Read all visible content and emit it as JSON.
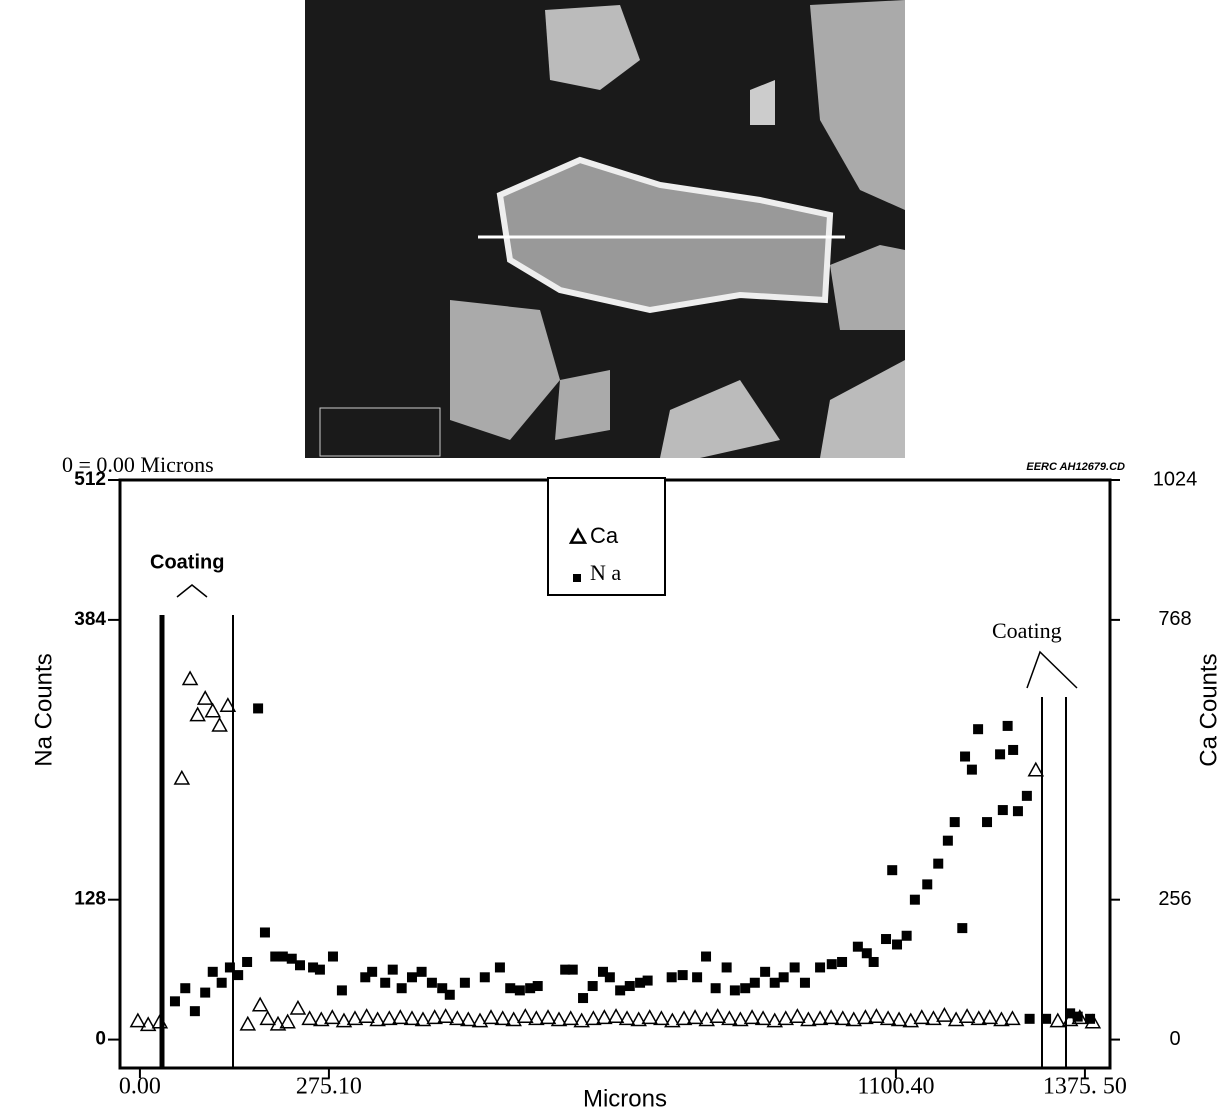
{
  "chart_data": {
    "type": "scatter",
    "title": "0 = 0.00 Microns",
    "subtitle": "EERC AH12679.CD",
    "x_label": "Microns",
    "y_label": "Na Counts",
    "y2_label": "Ca Counts",
    "annotations": [
      "Coating",
      "Coating"
    ],
    "xlim": [
      -29,
      1412
    ],
    "ylim": [
      -26,
      512
    ],
    "y2lim": [
      -52,
      1024
    ],
    "xticks": [
      {
        "value": 0,
        "label": "0.00"
      },
      {
        "value": 275.1,
        "label": "275.10"
      },
      {
        "value": 1100.4,
        "label": "1100.40"
      },
      {
        "value": 1375.5,
        "label": "1375. 50"
      }
    ],
    "yticks": [
      0,
      128,
      384,
      512
    ],
    "y2ticks": [
      0,
      256,
      768,
      1024
    ],
    "series": [
      {
        "name": "Ca",
        "color": "#000000",
        "marker": "triangle",
        "axis": "y2",
        "x": [
          -3,
          12,
          29,
          61,
          73,
          84,
          95,
          106,
          116,
          128,
          157,
          175,
          186,
          201,
          215,
          230,
          247,
          264,
          280,
          297,
          313,
          330,
          346,
          363,
          379,
          396,
          412,
          429,
          445,
          462,
          478,
          495,
          511,
          528,
          544,
          561,
          577,
          594,
          610,
          627,
          643,
          660,
          676,
          693,
          709,
          726,
          742,
          759,
          775,
          792,
          808,
          825,
          841,
          858,
          874,
          891,
          907,
          924,
          940,
          957,
          973,
          990,
          1006,
          1023,
          1039,
          1056,
          1072,
          1089,
          1105,
          1122,
          1138,
          1155,
          1171,
          1188,
          1204,
          1221,
          1237,
          1254,
          1270,
          1304,
          1336,
          1354,
          1368,
          1387
        ],
        "values": [
          34,
          27,
          32,
          478,
          660,
          594,
          624,
          601,
          575,
          611,
          28,
          63,
          38,
          28,
          32,
          57,
          38,
          36,
          40,
          34,
          38,
          42,
          36,
          38,
          40,
          38,
          36,
          40,
          42,
          38,
          36,
          34,
          40,
          38,
          36,
          42,
          38,
          40,
          36,
          38,
          34,
          38,
          40,
          42,
          38,
          36,
          40,
          38,
          34,
          38,
          40,
          36,
          42,
          38,
          36,
          40,
          38,
          34,
          38,
          42,
          36,
          38,
          40,
          38,
          36,
          40,
          42,
          38,
          36,
          34,
          40,
          38,
          44,
          36,
          42,
          38,
          40,
          36,
          38,
          493,
          34,
          36,
          40,
          32
        ]
      },
      {
        "name": "N a",
        "color": "#000000",
        "marker": "square",
        "axis": "y",
        "x": [
          51,
          66,
          80,
          95,
          106,
          119,
          131,
          143,
          156,
          172,
          182,
          197,
          208,
          221,
          233,
          252,
          262,
          281,
          294,
          328,
          338,
          357,
          368,
          381,
          396,
          410,
          425,
          440,
          451,
          473,
          502,
          524,
          539,
          553,
          568,
          579,
          619,
          630,
          645,
          659,
          674,
          684,
          699,
          713,
          728,
          739,
          774,
          790,
          811,
          824,
          838,
          854,
          866,
          881,
          895,
          910,
          924,
          937,
          953,
          968,
          990,
          1007,
          1022,
          1045,
          1058,
          1068,
          1086,
          1095,
          1102,
          1116,
          1128,
          1146,
          1162,
          1176,
          1186,
          1197,
          1201,
          1211,
          1220,
          1233,
          1252,
          1256,
          1263,
          1271,
          1278,
          1291,
          1295,
          1319,
          1354,
          1365,
          1383
        ],
        "values": [
          35,
          47,
          26,
          43,
          62,
          52,
          66,
          59,
          71,
          303,
          98,
          76,
          76,
          74,
          68,
          66,
          64,
          76,
          45,
          57,
          62,
          52,
          64,
          47,
          57,
          62,
          52,
          47,
          41,
          52,
          57,
          66,
          47,
          45,
          47,
          49,
          64,
          64,
          38,
          49,
          62,
          57,
          45,
          49,
          52,
          54,
          57,
          59,
          57,
          76,
          47,
          66,
          45,
          47,
          52,
          62,
          52,
          57,
          66,
          52,
          66,
          69,
          71,
          85,
          79,
          71,
          92,
          155,
          87,
          95,
          128,
          142,
          161,
          182,
          199,
          102,
          259,
          247,
          284,
          199,
          261,
          210,
          287,
          265,
          209,
          223,
          19,
          19,
          24,
          21,
          19
        ]
      }
    ]
  }
}
